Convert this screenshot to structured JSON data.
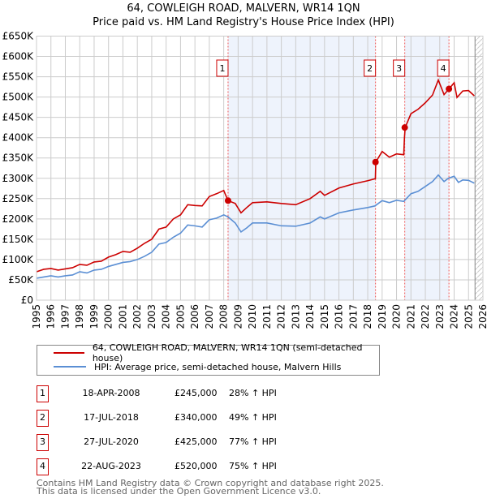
{
  "title": "64, COWLEIGH ROAD, MALVERN, WR14 1QN",
  "subtitle": "Price paid vs. HM Land Registry's House Price Index (HPI)",
  "chart_data": {
    "type": "line",
    "xlim": [
      1995,
      2026
    ],
    "ylim": [
      0,
      650000
    ],
    "x_ticks": [
      "1995",
      "1996",
      "1997",
      "1998",
      "1999",
      "2000",
      "2001",
      "2002",
      "2003",
      "2004",
      "2005",
      "2006",
      "2007",
      "2008",
      "2009",
      "2010",
      "2011",
      "2012",
      "2013",
      "2014",
      "2015",
      "2016",
      "2017",
      "2018",
      "2019",
      "2020",
      "2021",
      "2022",
      "2023",
      "2024",
      "2025",
      "2026"
    ],
    "y_ticks": [
      "£0",
      "£50K",
      "£100K",
      "£150K",
      "£200K",
      "£250K",
      "£300K",
      "£350K",
      "£400K",
      "£450K",
      "£500K",
      "£550K",
      "£600K",
      "£650K"
    ],
    "grid": true,
    "series": [
      {
        "name": "64, COWLEIGH ROAD, MALVERN, WR14 1QN (semi-detached house)",
        "color": "#cc0000",
        "x": [
          1995,
          1995.5,
          1996,
          1996.5,
          1997,
          1997.5,
          1998,
          1998.5,
          1999,
          1999.5,
          2000,
          2000.5,
          2001,
          2001.5,
          2002,
          2002.5,
          2003,
          2003.5,
          2004,
          2004.5,
          2005,
          2005.5,
          2006,
          2006.5,
          2007,
          2007.5,
          2008,
          2008.3,
          2008.8,
          2009.2,
          2009.6,
          2010,
          2011,
          2012,
          2013,
          2014,
          2014.7,
          2015,
          2016,
          2017,
          2018,
          2018.53,
          2018.56,
          2019,
          2019.5,
          2020,
          2020.5,
          2020.55,
          2020.6,
          2021,
          2021.5,
          2022,
          2022.5,
          2022.9,
          2023.3,
          2023.64,
          2024,
          2024.2,
          2024.6,
          2025,
          2025.4
        ],
        "y": [
          70000,
          76000,
          78000,
          74000,
          77000,
          80000,
          88000,
          86000,
          94000,
          96000,
          106000,
          112000,
          120000,
          118000,
          128000,
          140000,
          150000,
          175000,
          180000,
          200000,
          210000,
          235000,
          233000,
          232000,
          255000,
          262000,
          270000,
          245000,
          238000,
          215000,
          228000,
          240000,
          242000,
          238000,
          235000,
          250000,
          268000,
          258000,
          276000,
          286000,
          294000,
          299000,
          340000,
          366000,
          352000,
          360000,
          358000,
          400000,
          425000,
          459000,
          470000,
          486000,
          505000,
          542000,
          506000,
          520000,
          535000,
          499000,
          515000,
          516000,
          503000
        ]
      },
      {
        "name": "HPI: Average price, semi-detached house, Malvern Hills",
        "color": "#5b8fd4",
        "x": [
          1995,
          1995.5,
          1996,
          1996.5,
          1997,
          1997.5,
          1998,
          1998.5,
          1999,
          1999.5,
          2000,
          2000.5,
          2001,
          2001.5,
          2002,
          2002.5,
          2003,
          2003.5,
          2004,
          2004.5,
          2005,
          2005.5,
          2006,
          2006.5,
          2007,
          2007.5,
          2008,
          2008.3,
          2008.8,
          2009.2,
          2009.6,
          2010,
          2011,
          2012,
          2013,
          2014,
          2014.7,
          2015,
          2016,
          2017,
          2018,
          2018.5,
          2019,
          2019.5,
          2020,
          2020.5,
          2021,
          2021.5,
          2022,
          2022.5,
          2022.9,
          2023.3,
          2023.6,
          2024,
          2024.3,
          2024.6,
          2025,
          2025.4
        ],
        "y": [
          54000,
          57000,
          60000,
          57000,
          60000,
          62000,
          70000,
          67000,
          74000,
          76000,
          83000,
          88000,
          93000,
          95000,
          100000,
          108000,
          118000,
          138000,
          142000,
          155000,
          165000,
          185000,
          183000,
          180000,
          198000,
          202000,
          210000,
          205000,
          190000,
          168000,
          178000,
          190000,
          190000,
          183000,
          182000,
          190000,
          205000,
          200000,
          215000,
          222000,
          228000,
          232000,
          245000,
          240000,
          246000,
          243000,
          262000,
          268000,
          280000,
          292000,
          308000,
          292000,
          300000,
          305000,
          290000,
          296000,
          295000,
          288000
        ]
      }
    ],
    "sales": [
      {
        "num": "1",
        "x": 2008.3,
        "date": "18-APR-2008",
        "price": "£245,000",
        "value": 245000,
        "hpi": "28% ↑ HPI"
      },
      {
        "num": "2",
        "x": 2018.54,
        "date": "17-JUL-2018",
        "price": "£340,000",
        "value": 340000,
        "hpi": "49% ↑ HPI"
      },
      {
        "num": "3",
        "x": 2020.57,
        "date": "27-JUL-2020",
        "price": "£425,000",
        "value": 425000,
        "hpi": "77% ↑ HPI"
      },
      {
        "num": "4",
        "x": 2023.64,
        "date": "22-AUG-2023",
        "price": "£520,000",
        "value": 520000,
        "hpi": "75% ↑ HPI"
      }
    ],
    "forecast_start": 2025.45
  },
  "footer": [
    "Contains HM Land Registry data © Crown copyright and database right 2025.",
    "This data is licensed under the Open Government Licence v3.0."
  ]
}
